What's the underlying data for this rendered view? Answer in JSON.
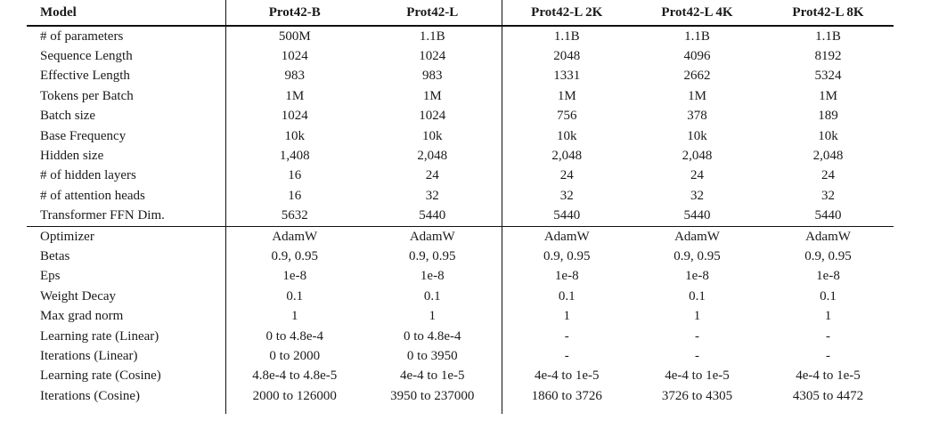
{
  "table": {
    "name": "prot42-hyperparameters",
    "columns": [
      "Model",
      "Prot42-B",
      "Prot42-L",
      "Prot42-L 2K",
      "Prot42-L 4K",
      "Prot42-L 8K"
    ],
    "sections": [
      {
        "name": "architecture",
        "rows": [
          {
            "label": "# of parameters",
            "values": [
              "500M",
              "1.1B",
              "1.1B",
              "1.1B",
              "1.1B"
            ]
          },
          {
            "label": "Sequence Length",
            "values": [
              "1024",
              "1024",
              "2048",
              "4096",
              "8192"
            ]
          },
          {
            "label": "Effective Length",
            "values": [
              "983",
              "983",
              "1331",
              "2662",
              "5324"
            ]
          },
          {
            "label": "Tokens per Batch",
            "values": [
              "1M",
              "1M",
              "1M",
              "1M",
              "1M"
            ]
          },
          {
            "label": "Batch size",
            "values": [
              "1024",
              "1024",
              "756",
              "378",
              "189"
            ]
          },
          {
            "label": "Base Frequency",
            "values": [
              "10k",
              "10k",
              "10k",
              "10k",
              "10k"
            ]
          },
          {
            "label": "Hidden size",
            "values": [
              "1,408",
              "2,048",
              "2,048",
              "2,048",
              "2,048"
            ]
          },
          {
            "label": "# of hidden layers",
            "values": [
              "16",
              "24",
              "24",
              "24",
              "24"
            ]
          },
          {
            "label": "# of attention heads",
            "values": [
              "16",
              "32",
              "32",
              "32",
              "32"
            ]
          },
          {
            "label": "Transformer FFN Dim.",
            "values": [
              "5632",
              "5440",
              "5440",
              "5440",
              "5440"
            ]
          }
        ]
      },
      {
        "name": "optimization",
        "rows": [
          {
            "label": "Optimizer",
            "values": [
              "AdamW",
              "AdamW",
              "AdamW",
              "AdamW",
              "AdamW"
            ]
          },
          {
            "label": "Betas",
            "values": [
              "0.9, 0.95",
              "0.9, 0.95",
              "0.9, 0.95",
              "0.9, 0.95",
              "0.9, 0.95"
            ]
          },
          {
            "label": "Eps",
            "values": [
              "1e-8",
              "1e-8",
              "1e-8",
              "1e-8",
              "1e-8"
            ]
          },
          {
            "label": "Weight Decay",
            "values": [
              "0.1",
              "0.1",
              "0.1",
              "0.1",
              "0.1"
            ]
          },
          {
            "label": "Max grad norm",
            "values": [
              "1",
              "1",
              "1",
              "1",
              "1"
            ]
          },
          {
            "label": "Learning rate (Linear)",
            "values": [
              "0 to 4.8e-4",
              "0 to 4.8e-4",
              "-",
              "-",
              "-"
            ]
          },
          {
            "label": "Iterations (Linear)",
            "values": [
              "0 to 2000",
              "0 to 3950",
              "-",
              "-",
              "-"
            ]
          },
          {
            "label": "Learning rate (Cosine)",
            "values": [
              "4.8e-4 to 4.8e-5",
              "4e-4 to 1e-5",
              "4e-4 to 1e-5",
              "4e-4 to 1e-5",
              "4e-4 to 1e-5"
            ]
          },
          {
            "label": "Iterations (Cosine)",
            "values": [
              "2000 to 126000",
              "3950 to 237000",
              "1860 to 3726",
              "3726 to 4305",
              "4305 to 4472"
            ]
          }
        ]
      }
    ],
    "rule_color": "#111111",
    "text_color": "#1a1a1a",
    "background_color": "#ffffff"
  }
}
